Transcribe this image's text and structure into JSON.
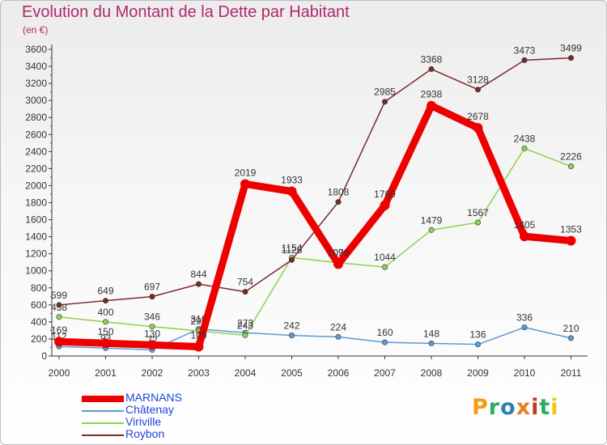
{
  "title": "Evolution du Montant de la Dette par Habitant",
  "unit_label": "(en €)",
  "logo": {
    "text": "Proxiti",
    "colors": [
      "#f39c12",
      "#27ae60",
      "#2980b9",
      "#e67e22",
      "#c0392b",
      "#27ae60",
      "#f1c40f"
    ]
  },
  "chart_data": {
    "type": "line",
    "x": [
      "2000",
      "2001",
      "2002",
      "2003",
      "2004",
      "2005",
      "2006",
      "2007",
      "2008",
      "2009",
      "2010",
      "2011"
    ],
    "y_ticks": [
      0,
      200,
      400,
      600,
      800,
      1000,
      1200,
      1400,
      1600,
      1800,
      2000,
      2200,
      2400,
      2600,
      2800,
      3000,
      3200,
      3400,
      3600
    ],
    "ylim": [
      0,
      3600
    ],
    "legend_position": "bottom-left",
    "grid": false,
    "series": [
      {
        "name": "Châtenay",
        "color": "#5b9bd5",
        "values": [
          112,
          93,
          72,
          318,
          273,
          242,
          224,
          160,
          148,
          136,
          336,
          210
        ]
      },
      {
        "name": "Viriville",
        "color": "#8fd14f",
        "values": [
          458,
          400,
          346,
          295,
          243,
          1154,
          1096,
          1044,
          1479,
          1567,
          2438,
          2226
        ]
      },
      {
        "name": "Roybon",
        "color": "#7b2a2a",
        "values": [
          599,
          649,
          697,
          844,
          754,
          1128,
          1808,
          2985,
          3368,
          3128,
          3473,
          3499
        ]
      },
      {
        "name": "MARNANS",
        "color": "#ee0000",
        "values": [
          169,
          150,
          130,
          109,
          2019,
          1933,
          1079,
          1769,
          2938,
          2678,
          1405,
          1353
        ]
      }
    ]
  }
}
